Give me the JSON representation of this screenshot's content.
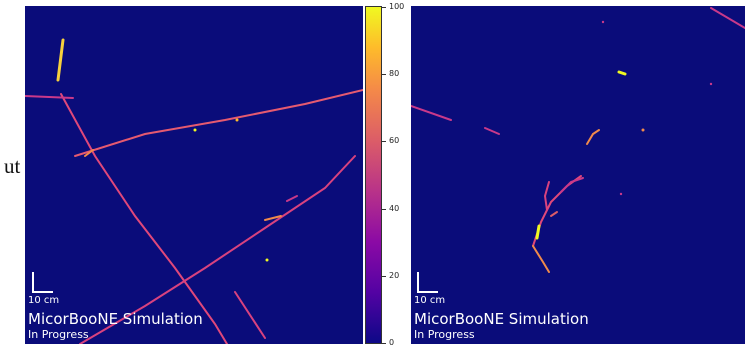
{
  "left_fragment": "ut",
  "panels": [
    {
      "scale_label": "10 cm",
      "title": "MicorBooNE Simulation",
      "subtitle": "In Progress"
    },
    {
      "scale_label": "10 cm",
      "title": "MicorBooNE Simulation",
      "subtitle": "In Progress"
    }
  ],
  "colorbar": {
    "colormap": "plasma",
    "ticks": [
      "0",
      "20",
      "40",
      "60",
      "80",
      "100"
    ]
  }
}
